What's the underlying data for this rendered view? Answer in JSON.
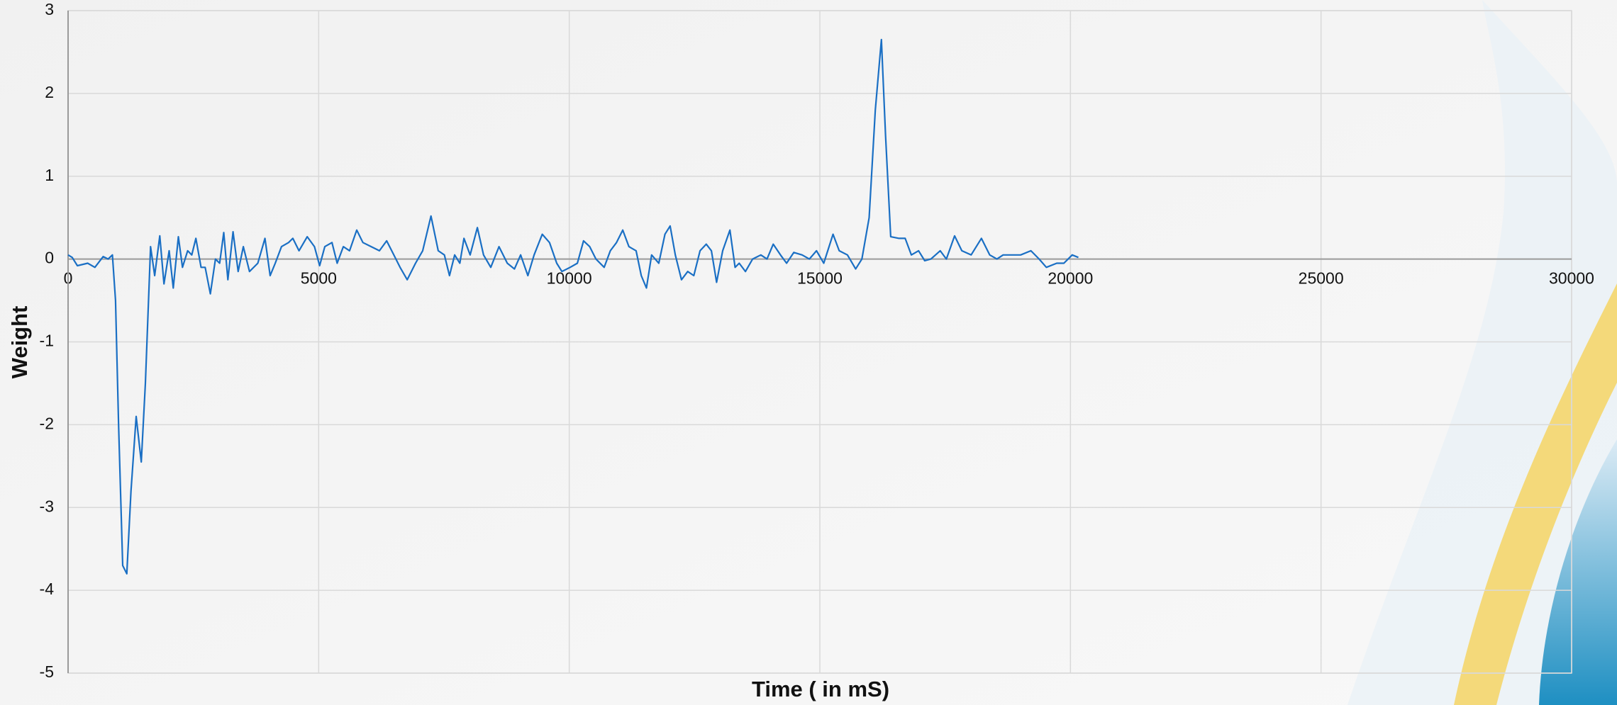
{
  "chart_data": {
    "type": "line",
    "x_label": "Time ( in mS)",
    "y_label": "Weight",
    "x": [
      0,
      82,
      185,
      390,
      535,
      700,
      800,
      885,
      946,
      1008,
      1090,
      1172,
      1255,
      1358,
      1460,
      1543,
      1646,
      1728,
      1830,
      1913,
      2016,
      2098,
      2200,
      2283,
      2386,
      2468,
      2550,
      2653,
      2736,
      2839,
      2941,
      3024,
      3106,
      3188,
      3291,
      3394,
      3497,
      3620,
      3785,
      3929,
      4032,
      4134,
      4258,
      4400,
      4484,
      4608,
      4772,
      4916,
      5019,
      5122,
      5266,
      5369,
      5492,
      5616,
      5760,
      5883,
      6048,
      6212,
      6356,
      6500,
      6624,
      6767,
      6932,
      7076,
      7241,
      7385,
      7508,
      7611,
      7714,
      7817,
      7899,
      8022,
      8166,
      8290,
      8434,
      8598,
      8763,
      8907,
      9030,
      9174,
      9298,
      9462,
      9606,
      9750,
      9853,
      10018,
      10162,
      10285,
      10408,
      10532,
      10696,
      10820,
      10943,
      11067,
      11190,
      11334,
      11437,
      11540,
      11643,
      11787,
      11910,
      12013,
      12116,
      12239,
      12363,
      12486,
      12610,
      12733,
      12836,
      12939,
      13062,
      13206,
      13309,
      13391,
      13515,
      13659,
      13823,
      13946,
      14070,
      14214,
      14337,
      14481,
      14646,
      14790,
      14934,
      15078,
      15263,
      15386,
      15551,
      15715,
      15839,
      15983,
      16106,
      16229,
      16311,
      16414,
      16579,
      16702,
      16826,
      16970,
      17093,
      17216,
      17401,
      17525,
      17689,
      17833,
      18018,
      18224,
      18389,
      18533,
      18656,
      18800,
      19006,
      19212,
      19376,
      19520,
      19726,
      19870,
      20035,
      20158
    ],
    "values": [
      0.05,
      0.02,
      -0.08,
      -0.05,
      -0.1,
      0.03,
      0.0,
      0.05,
      -0.5,
      -2,
      -3.7,
      -3.8,
      -2.8,
      -1.9,
      -2.45,
      -1.5,
      0.15,
      -0.2,
      0.28,
      -0.3,
      0.1,
      -0.35,
      0.27,
      -0.1,
      0.1,
      0.05,
      0.25,
      -0.1,
      -0.1,
      -0.42,
      0.0,
      -0.05,
      0.32,
      -0.25,
      0.33,
      -0.15,
      0.15,
      -0.15,
      -0.05,
      0.25,
      -0.2,
      -0.05,
      0.15,
      0.2,
      0.25,
      0.1,
      0.27,
      0.15,
      -0.08,
      0.15,
      0.2,
      -0.05,
      0.15,
      0.1,
      0.35,
      0.2,
      0.15,
      0.1,
      0.22,
      0.05,
      -0.1,
      -0.25,
      -0.05,
      0.1,
      0.52,
      0.1,
      0.05,
      -0.2,
      0.05,
      -0.05,
      0.25,
      0.05,
      0.38,
      0.05,
      -0.1,
      0.15,
      -0.05,
      -0.12,
      0.05,
      -0.2,
      0.05,
      0.3,
      0.2,
      -0.05,
      -0.15,
      -0.1,
      -0.05,
      0.22,
      0.15,
      0.0,
      -0.1,
      0.1,
      0.2,
      0.35,
      0.15,
      0.1,
      -0.2,
      -0.35,
      0.05,
      -0.05,
      0.3,
      0.4,
      0.05,
      -0.25,
      -0.15,
      -0.2,
      0.1,
      0.18,
      0.1,
      -0.28,
      0.1,
      0.35,
      -0.1,
      -0.05,
      -0.15,
      0.0,
      0.05,
      0.0,
      0.18,
      0.05,
      -0.05,
      0.08,
      0.05,
      0.0,
      0.1,
      -0.05,
      0.3,
      0.1,
      0.05,
      -0.12,
      0.0,
      0.5,
      1.8,
      2.65,
      1.5,
      0.27,
      0.25,
      0.25,
      0.05,
      0.1,
      -0.02,
      0.0,
      0.1,
      0.0,
      0.28,
      0.1,
      0.05,
      0.25,
      0.05,
      0.0,
      0.05,
      0.05,
      0.05,
      0.1,
      0.0,
      -0.1,
      -0.05,
      -0.05,
      0.05,
      0.02
    ],
    "color": "#1a6fc4",
    "xlim": [
      0,
      30000
    ],
    "xticks": [
      0,
      5000,
      10000,
      15000,
      20000,
      25000,
      30000
    ],
    "ylim": [
      -5,
      3
    ],
    "yticks": [
      -5,
      -4,
      -3,
      -2,
      -1,
      0,
      1,
      2,
      3
    ],
    "grid": true
  }
}
